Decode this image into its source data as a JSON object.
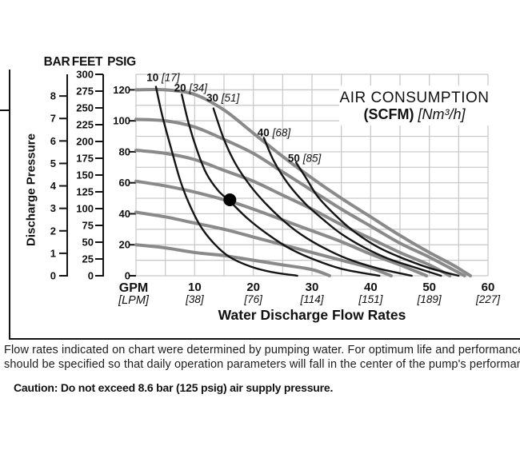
{
  "page": {
    "ylabel": "Discharge Pressure",
    "scale_headers": [
      "BAR",
      "FEET",
      "PSIG"
    ],
    "notes": {
      "line1": "Flow rates indicated on chart were determined by pumping water. For optimum life and performance, pump",
      "line2": "should be specified so that daily operation parameters will fall in the center of the pump's performance curv"
    },
    "caution": "Caution: Do not exceed 8.6 bar (125 psig) air supply pressure."
  },
  "chart_data": {
    "type": "line",
    "title": {
      "line1": "AIR CONSUMPTION",
      "scfm": "(SCFM)",
      "nm3h": "[Nm³/h]"
    },
    "xlabel": "Water Discharge Flow Rates",
    "ylabel": "Discharge Pressure",
    "x_units": {
      "primary": "GPM",
      "secondary": "[LPM]"
    },
    "x_ticks": [
      {
        "gpm": "10",
        "lpm": "[38]"
      },
      {
        "gpm": "20",
        "lpm": "[76]"
      },
      {
        "gpm": "30",
        "lpm": "[114]"
      },
      {
        "gpm": "40",
        "lpm": "[151]"
      },
      {
        "gpm": "50",
        "lpm": "[189]"
      },
      {
        "gpm": "60",
        "lpm": "[227]"
      }
    ],
    "xlim": [
      0,
      60
    ],
    "ylim_psig": [
      0,
      130
    ],
    "grid": {
      "on": true,
      "x_step_gpm": 5,
      "y_step_psig": 10
    },
    "legend_position": "inside-top-right",
    "y_scales": {
      "bar": {
        "name": "BAR",
        "min": 0,
        "max": 8,
        "step": 1,
        "psig_per_unit": 14.5
      },
      "feet": {
        "name": "FEET",
        "min": 0,
        "max": 300,
        "step": 25,
        "psig_per_unit": 0.43333
      },
      "psig": {
        "name": "PSIG",
        "min": 0,
        "max": 120,
        "step": 20,
        "psig_per_unit": 1
      }
    },
    "pump_curves": [
      {
        "name": "pump-curve-120psig",
        "start_psig": 120,
        "points": [
          [
            0,
            120
          ],
          [
            5,
            120
          ],
          [
            10,
            117
          ],
          [
            15,
            107
          ],
          [
            20,
            92
          ],
          [
            25,
            77
          ],
          [
            30,
            63
          ],
          [
            35,
            50
          ],
          [
            40,
            38
          ],
          [
            45,
            26
          ],
          [
            50,
            15
          ],
          [
            54,
            7
          ],
          [
            57,
            0
          ]
        ]
      },
      {
        "name": "pump-curve-100psig",
        "start_psig": 100,
        "points": [
          [
            0,
            101
          ],
          [
            5,
            100
          ],
          [
            10,
            96
          ],
          [
            15,
            88
          ],
          [
            20,
            79
          ],
          [
            25,
            67
          ],
          [
            30,
            55
          ],
          [
            35,
            43
          ],
          [
            40,
            32
          ],
          [
            45,
            21
          ],
          [
            50,
            12
          ],
          [
            56,
            0
          ]
        ]
      },
      {
        "name": "pump-curve-80psig",
        "start_psig": 80,
        "points": [
          [
            0,
            81
          ],
          [
            5,
            79
          ],
          [
            10,
            75
          ],
          [
            15,
            68
          ],
          [
            20,
            61
          ],
          [
            25,
            52
          ],
          [
            30,
            43
          ],
          [
            35,
            33
          ],
          [
            40,
            24
          ],
          [
            45,
            15
          ],
          [
            50,
            7
          ],
          [
            53.5,
            0
          ]
        ]
      },
      {
        "name": "pump-curve-60psig",
        "start_psig": 60,
        "points": [
          [
            0,
            61
          ],
          [
            5,
            58
          ],
          [
            10,
            54
          ],
          [
            16,
            48
          ],
          [
            20,
            43
          ],
          [
            25,
            36
          ],
          [
            30,
            29
          ],
          [
            35,
            22
          ],
          [
            40,
            14
          ],
          [
            45,
            7
          ],
          [
            49.5,
            0
          ]
        ]
      },
      {
        "name": "pump-curve-40psig",
        "start_psig": 40,
        "points": [
          [
            0,
            41
          ],
          [
            5,
            38
          ],
          [
            10,
            34
          ],
          [
            15,
            30
          ],
          [
            20,
            25
          ],
          [
            25,
            20
          ],
          [
            30,
            15
          ],
          [
            35,
            10
          ],
          [
            40,
            5
          ],
          [
            43.5,
            0
          ]
        ]
      },
      {
        "name": "pump-curve-20psig",
        "start_psig": 20,
        "points": [
          [
            0,
            20
          ],
          [
            5,
            18
          ],
          [
            10,
            15
          ],
          [
            15,
            13
          ],
          [
            20,
            10
          ],
          [
            25,
            7
          ],
          [
            30,
            4
          ],
          [
            33,
            0
          ]
        ]
      }
    ],
    "air_curves": [
      {
        "scfm": "10",
        "nm3h": "[17]",
        "label_at": [
          1.8,
          125.5
        ],
        "points": [
          [
            3.4,
            122
          ],
          [
            4.5,
            103
          ],
          [
            6,
            82
          ],
          [
            7.5,
            62
          ],
          [
            9,
            47
          ],
          [
            11,
            32
          ],
          [
            13.5,
            20
          ],
          [
            16,
            12
          ],
          [
            19.5,
            6
          ],
          [
            23,
            2.5
          ],
          [
            27.5,
            0
          ]
        ]
      },
      {
        "scfm": "20",
        "nm3h": "[34]",
        "label_at": [
          6.5,
          119
        ],
        "points": [
          [
            7.8,
            117
          ],
          [
            9,
            98
          ],
          [
            10.5,
            80
          ],
          [
            12,
            66
          ],
          [
            14,
            55
          ],
          [
            16,
            48
          ],
          [
            19,
            37
          ],
          [
            22,
            28
          ],
          [
            26,
            18
          ],
          [
            30,
            11
          ],
          [
            35,
            4.5
          ],
          [
            41.5,
            0
          ]
        ]
      },
      {
        "scfm": "30",
        "nm3h": "[51]",
        "label_at": [
          12,
          112.5
        ],
        "points": [
          [
            13.2,
            108
          ],
          [
            15,
            88
          ],
          [
            17,
            72
          ],
          [
            19.5,
            58
          ],
          [
            22,
            47
          ],
          [
            25,
            36
          ],
          [
            28,
            27
          ],
          [
            32,
            18
          ],
          [
            36,
            11
          ],
          [
            41,
            5
          ],
          [
            47,
            0
          ]
        ]
      },
      {
        "scfm": "40",
        "nm3h": "[68]",
        "label_at": [
          20.7,
          90
        ],
        "points": [
          [
            21.8,
            89
          ],
          [
            23.5,
            74
          ],
          [
            26,
            59
          ],
          [
            29,
            46
          ],
          [
            32,
            36
          ],
          [
            35,
            27
          ],
          [
            39,
            18
          ],
          [
            43,
            11
          ],
          [
            47,
            6
          ],
          [
            52,
            0
          ]
        ]
      },
      {
        "scfm": "50",
        "nm3h": "[85]",
        "label_at": [
          25.9,
          73.5
        ],
        "points": [
          [
            27.3,
            73
          ],
          [
            29,
            63
          ],
          [
            31,
            51
          ],
          [
            34,
            39
          ],
          [
            37,
            29
          ],
          [
            41,
            19
          ],
          [
            45,
            12
          ],
          [
            50,
            5
          ],
          [
            55,
            0
          ]
        ]
      }
    ],
    "operating_point": {
      "gpm": 16,
      "psig": 49
    },
    "colors": {
      "pump_curve": "#8a8a8a",
      "air_curve": "#141414",
      "grid": "#c6c6c6",
      "axis": "#141414",
      "dot": "#000000",
      "text": "#111111"
    }
  }
}
